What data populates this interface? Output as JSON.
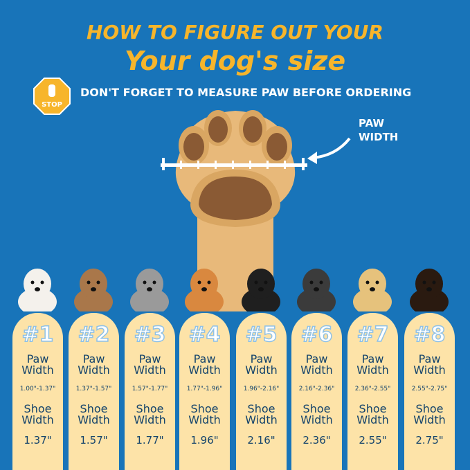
{
  "title_line1": "HOW TO FIGURE OUT YOUR",
  "title_line2": "Your dog's size",
  "stop_sign": "STOP",
  "subtitle": "DON'T FORGET TO MEASURE PAW BEFORE ORDERING",
  "paw_width_label_1": "PAW",
  "paw_width_label_2": "WIDTH",
  "colors": {
    "background": "#1874b9",
    "title": "#f7b52b",
    "card": "#fde3a8",
    "text": "#14436b"
  },
  "sizes": [
    {
      "num": "#1",
      "paw_label_1": "Paw",
      "paw_label_2": "Width",
      "paw_range": "1.00\"-1.37\"",
      "shoe_label_1": "Shoe",
      "shoe_label_2": "Width",
      "shoe": "1.37\""
    },
    {
      "num": "#2",
      "paw_label_1": "Paw",
      "paw_label_2": "Width",
      "paw_range": "1.37\"-1.57\"",
      "shoe_label_1": "Shoe",
      "shoe_label_2": "Width",
      "shoe": "1.57\""
    },
    {
      "num": "#3",
      "paw_label_1": "Paw",
      "paw_label_2": "Width",
      "paw_range": "1.57\"-1.77\"",
      "shoe_label_1": "Shoe",
      "shoe_label_2": "Width",
      "shoe": "1.77\""
    },
    {
      "num": "#4",
      "paw_label_1": "Paw",
      "paw_label_2": "Width",
      "paw_range": "1.77\"-1.96\"",
      "shoe_label_1": "Shoe",
      "shoe_label_2": "Width",
      "shoe": "1.96\""
    },
    {
      "num": "#5",
      "paw_label_1": "Paw",
      "paw_label_2": "Width",
      "paw_range": "1.96\"-2.16\"",
      "shoe_label_1": "Shoe",
      "shoe_label_2": "Width",
      "shoe": "2.16\""
    },
    {
      "num": "#6",
      "paw_label_1": "Paw",
      "paw_label_2": "Width",
      "paw_range": "2.16\"-2.36\"",
      "shoe_label_1": "Shoe",
      "shoe_label_2": "Width",
      "shoe": "2.36\""
    },
    {
      "num": "#7",
      "paw_label_1": "Paw",
      "paw_label_2": "Width",
      "paw_range": "2.36\"-2.55\"",
      "shoe_label_1": "Shoe",
      "shoe_label_2": "Width",
      "shoe": "2.55\""
    },
    {
      "num": "#8",
      "paw_label_1": "Paw",
      "paw_label_2": "Width",
      "paw_range": "2.55\"-2.75\"",
      "shoe_label_1": "Shoe",
      "shoe_label_2": "Width",
      "shoe": "2.75\""
    }
  ]
}
